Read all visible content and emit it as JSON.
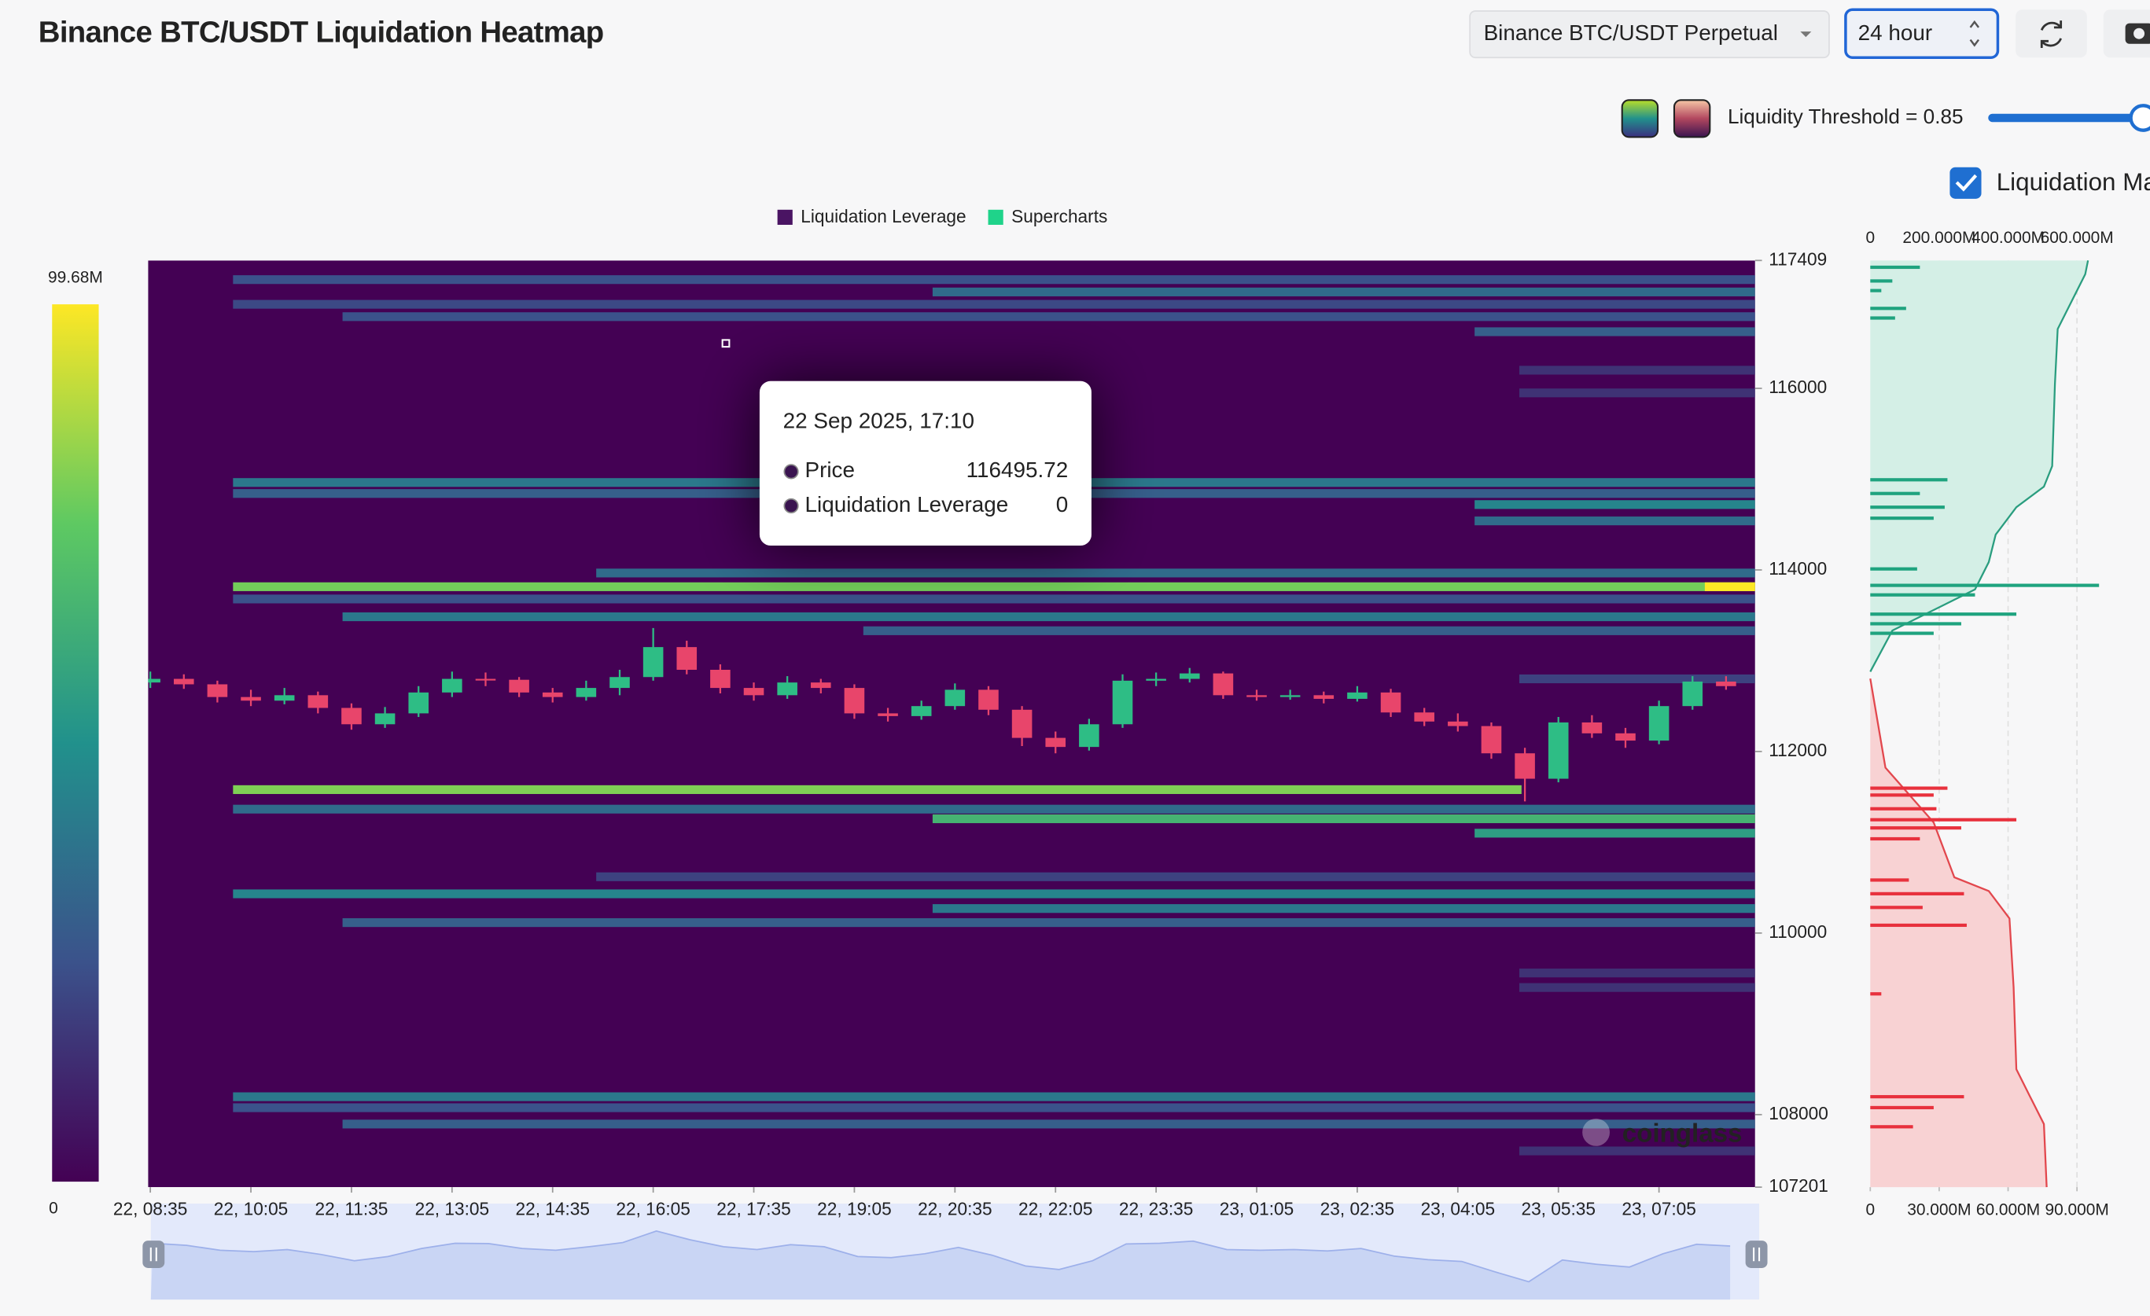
{
  "header": {
    "title": "Binance BTC/USDT Liquidation Heatmap",
    "exchange_select": "Binance BTC/USDT Perpetual",
    "interval_select": "24 hour",
    "threshold_label": "Liquidity Threshold = 0.85",
    "checkbox_label": "Liquidation Map"
  },
  "chart_data": [
    {
      "type": "heatmap",
      "xlim": [
        "2025-09-22 08:33",
        "2025-09-23 08:31"
      ],
      "xticks": [
        {
          "value": "2025-09-22 08:35",
          "label": "22, 08:35"
        },
        {
          "value": "2025-09-22 10:05",
          "label": "22, 10:05"
        },
        {
          "value": "2025-09-22 11:35",
          "label": "22, 11:35"
        },
        {
          "value": "2025-09-22 13:05",
          "label": "22, 13:05"
        },
        {
          "value": "2025-09-22 14:35",
          "label": "22, 14:35"
        },
        {
          "value": "2025-09-22 16:05",
          "label": "22, 16:05"
        },
        {
          "value": "2025-09-22 17:35",
          "label": "22, 17:35"
        },
        {
          "value": "2025-09-22 19:05",
          "label": "22, 19:05"
        },
        {
          "value": "2025-09-22 20:35",
          "label": "22, 20:35"
        },
        {
          "value": "2025-09-22 22:05",
          "label": "22, 22:05"
        },
        {
          "value": "2025-09-22 23:35",
          "label": "22, 23:35"
        },
        {
          "value": "2025-09-23 01:05",
          "label": "23, 01:05"
        },
        {
          "value": "2025-09-23 02:35",
          "label": "23, 02:35"
        },
        {
          "value": "2025-09-23 04:05",
          "label": "23, 04:05"
        },
        {
          "value": "2025-09-23 05:35",
          "label": "23, 05:35"
        },
        {
          "value": "2025-09-23 07:05",
          "label": "23, 07:05"
        }
      ],
      "ylim": [
        107201,
        117409
      ],
      "yticks": [
        107201,
        108000,
        110000,
        112000,
        114000,
        116000,
        117409
      ],
      "colormap": [
        "#440154",
        "#3b528b",
        "#21918c",
        "#5ec962",
        "#fde725"
      ],
      "colorbar": {
        "lim": [
          0,
          99.68
        ],
        "ticks": [
          0,
          {
            "value": 99.68,
            "label": "99.68M"
          }
        ]
      },
      "series": [
        {
          "name": "Liquidation Leverage",
          "color": "#4a1463",
          "segments": [
            {
              "price": 117198,
              "start": "2025-09-22 09:49",
              "value": 25
            },
            {
              "price": 117062,
              "start": "2025-09-22 20:15",
              "value": 35
            },
            {
              "price": 116926,
              "start": "2025-09-22 09:49",
              "value": 22
            },
            {
              "price": 116790,
              "start": "2025-09-22 11:27",
              "value": 25
            },
            {
              "price": 116624,
              "start": "2025-09-23 04:20",
              "value": 30
            },
            {
              "price": 116200,
              "start": "2025-09-23 05:00",
              "value": 15
            },
            {
              "price": 115950,
              "start": "2025-09-23 05:00",
              "value": 15
            },
            {
              "price": 114963,
              "start": "2025-09-22 09:49",
              "value": 40
            },
            {
              "price": 114842,
              "start": "2025-09-22 09:49",
              "value": 30
            },
            {
              "price": 114720,
              "start": "2025-09-23 04:20",
              "value": 45
            },
            {
              "price": 114540,
              "start": "2025-09-23 04:20",
              "value": 35
            },
            {
              "price": 113966,
              "start": "2025-09-22 15:14",
              "value": 35
            },
            {
              "price": 113815,
              "start": "2025-09-22 09:49",
              "value": 78
            },
            {
              "price": 113815,
              "start": "2025-09-23 07:46",
              "value": 99.68
            },
            {
              "price": 113680,
              "start": "2025-09-22 09:49",
              "value": 25
            },
            {
              "price": 113484,
              "start": "2025-09-22 11:27",
              "value": 40
            },
            {
              "price": 113330,
              "start": "2025-09-22 19:13",
              "value": 30
            },
            {
              "price": 112800,
              "start": "2025-09-23 05:00",
              "value": 20
            },
            {
              "price": 111580,
              "start": "2025-09-22 09:49",
              "end": "2025-09-23 05:02",
              "value": 80
            },
            {
              "price": 111365,
              "start": "2025-09-22 09:49",
              "value": 35
            },
            {
              "price": 111259,
              "start": "2025-09-22 20:15",
              "value": 65
            },
            {
              "price": 111100,
              "start": "2025-09-23 04:20",
              "value": 55
            },
            {
              "price": 110620,
              "start": "2025-09-22 15:14",
              "value": 20
            },
            {
              "price": 110432,
              "start": "2025-09-22 09:49",
              "value": 45
            },
            {
              "price": 110270,
              "start": "2025-09-22 20:15",
              "value": 40
            },
            {
              "price": 110115,
              "start": "2025-09-22 11:27",
              "value": 30
            },
            {
              "price": 109560,
              "start": "2025-09-23 05:00",
              "value": 15
            },
            {
              "price": 109400,
              "start": "2025-09-23 05:00",
              "value": 15
            },
            {
              "price": 108197,
              "start": "2025-09-22 09:49",
              "value": 40
            },
            {
              "price": 108076,
              "start": "2025-09-22 09:49",
              "value": 25
            },
            {
              "price": 107896,
              "start": "2025-09-22 11:27",
              "value": 30
            },
            {
              "price": 107600,
              "start": "2025-09-23 05:00",
              "value": 15
            }
          ]
        },
        {
          "name": "Supercharts",
          "color": "#1fd38a",
          "up_color": "#2ebd85",
          "down_color": "#e8456b",
          "x": [
            "2025-09-22 08:35",
            "2025-09-22 09:05",
            "2025-09-22 09:35",
            "2025-09-22 10:05",
            "2025-09-22 10:35",
            "2025-09-22 11:05",
            "2025-09-22 11:35",
            "2025-09-22 12:05",
            "2025-09-22 12:35",
            "2025-09-22 13:05",
            "2025-09-22 13:35",
            "2025-09-22 14:05",
            "2025-09-22 14:35",
            "2025-09-22 15:05",
            "2025-09-22 15:35",
            "2025-09-22 16:05",
            "2025-09-22 16:35",
            "2025-09-22 17:05",
            "2025-09-22 17:35",
            "2025-09-22 18:05",
            "2025-09-22 18:35",
            "2025-09-22 19:05",
            "2025-09-22 19:35",
            "2025-09-22 20:05",
            "2025-09-22 20:35",
            "2025-09-22 21:05",
            "2025-09-22 21:35",
            "2025-09-22 22:05",
            "2025-09-22 22:35",
            "2025-09-22 23:05",
            "2025-09-22 23:35",
            "2025-09-23 00:05",
            "2025-09-23 00:35",
            "2025-09-23 01:05",
            "2025-09-23 01:35",
            "2025-09-23 02:05",
            "2025-09-23 02:35",
            "2025-09-23 03:05",
            "2025-09-23 03:35",
            "2025-09-23 04:05",
            "2025-09-23 04:35",
            "2025-09-23 05:05",
            "2025-09-23 05:35",
            "2025-09-23 06:05",
            "2025-09-23 06:35",
            "2025-09-23 07:05",
            "2025-09-23 07:35",
            "2025-09-23 08:05"
          ],
          "ohlc": [
            [
              112760,
              112880,
              112700,
              112800
            ],
            [
              112800,
              112850,
              112690,
              112740
            ],
            [
              112740,
              112780,
              112540,
              112600
            ],
            [
              112600,
              112680,
              112500,
              112560
            ],
            [
              112560,
              112700,
              112520,
              112620
            ],
            [
              112620,
              112660,
              112420,
              112480
            ],
            [
              112480,
              112530,
              112240,
              112300
            ],
            [
              112300,
              112490,
              112260,
              112420
            ],
            [
              112420,
              112720,
              112380,
              112650
            ],
            [
              112650,
              112880,
              112600,
              112800
            ],
            [
              112800,
              112870,
              112720,
              112790
            ],
            [
              112790,
              112820,
              112600,
              112650
            ],
            [
              112650,
              112700,
              112540,
              112600
            ],
            [
              112600,
              112780,
              112560,
              112700
            ],
            [
              112700,
              112900,
              112620,
              112820
            ],
            [
              112820,
              113360,
              112780,
              113150
            ],
            [
              113150,
              113220,
              112850,
              112900
            ],
            [
              112900,
              112960,
              112640,
              112700
            ],
            [
              112700,
              112760,
              112560,
              112620
            ],
            [
              112620,
              112830,
              112580,
              112760
            ],
            [
              112760,
              112800,
              112640,
              112700
            ],
            [
              112700,
              112740,
              112360,
              112420
            ],
            [
              112420,
              112480,
              112330,
              112390
            ],
            [
              112390,
              112560,
              112350,
              112500
            ],
            [
              112500,
              112750,
              112460,
              112680
            ],
            [
              112680,
              112720,
              112400,
              112460
            ],
            [
              112460,
              112500,
              112060,
              112150
            ],
            [
              112150,
              112220,
              111980,
              112050
            ],
            [
              112050,
              112360,
              112010,
              112300
            ],
            [
              112300,
              112850,
              112260,
              112780
            ],
            [
              112780,
              112870,
              112720,
              112800
            ],
            [
              112800,
              112920,
              112760,
              112860
            ],
            [
              112860,
              112880,
              112580,
              112620
            ],
            [
              112620,
              112680,
              112560,
              112600
            ],
            [
              112600,
              112680,
              112570,
              112620
            ],
            [
              112620,
              112660,
              112530,
              112580
            ],
            [
              112580,
              112720,
              112550,
              112650
            ],
            [
              112650,
              112690,
              112380,
              112430
            ],
            [
              112430,
              112480,
              112280,
              112330
            ],
            [
              112330,
              112420,
              112220,
              112280
            ],
            [
              112280,
              112320,
              111920,
              111980
            ],
            [
              111980,
              112040,
              111450,
              111700
            ],
            [
              111700,
              112380,
              111660,
              112320
            ],
            [
              112320,
              112400,
              112150,
              112200
            ],
            [
              112200,
              112260,
              112040,
              112120
            ],
            [
              112120,
              112560,
              112080,
              112500
            ],
            [
              112500,
              112830,
              112460,
              112770
            ],
            [
              112770,
              112830,
              112680,
              112720
            ]
          ]
        }
      ],
      "tooltip": {
        "title": "22 Sep 2025, 17:10",
        "time": "2025-09-22 17:10",
        "rows": [
          {
            "name": "Price",
            "value": 116495.72
          },
          {
            "name": "Liquidation Leverage",
            "value": 0
          }
        ]
      },
      "watermark": "coinglass"
    },
    {
      "type": "profile",
      "ylim": [
        107201,
        117409
      ],
      "xlim": [
        0,
        120
      ],
      "xticks": [
        0,
        {
          "value": 30,
          "label": "30.000M"
        },
        {
          "value": 60,
          "label": "60.000M"
        },
        {
          "value": 90,
          "label": "90.000M"
        }
      ],
      "x2lim": [
        0,
        800
      ],
      "x2ticks": [
        0,
        {
          "value": 200,
          "label": "200.000M"
        },
        {
          "value": 400,
          "label": "400.000M"
        },
        {
          "value": 600,
          "label": "600.000M"
        }
      ],
      "series": [
        {
          "type": "area",
          "axis": "x2",
          "color": "#2a9d7f",
          "fill": "#d4efe6",
          "price": [
            117409,
            117258,
            116654,
            116050,
            115144,
            114917,
            114691,
            114389,
            114087,
            113785,
            113634,
            113332,
            112879
          ],
          "values": [
            632,
            624,
            544,
            536,
            528,
            504,
            424,
            364,
            344,
            304,
            224,
            64,
            0
          ]
        },
        {
          "type": "area",
          "axis": "x2",
          "color": "#e2474d",
          "fill": "#f8d2d3",
          "price": [
            112803,
            111822,
            111218,
            110614,
            110463,
            110161,
            109406,
            108500,
            108197,
            107896,
            107201
          ],
          "values": [
            0,
            44,
            184,
            244,
            344,
            404,
            416,
            424,
            464,
            504,
            512
          ]
        },
        {
          "type": "bar",
          "color": "#1fa37f",
          "price": [
            117334,
            117183,
            117077,
            116881,
            116775,
            114993,
            114842,
            114691,
            114570,
            114011,
            113830,
            113725,
            113513,
            113407,
            113302
          ],
          "values": [
            21.6,
            9.6,
            4.8,
            15.6,
            10.8,
            33.6,
            21.6,
            32.4,
            27.6,
            20.4,
            99.6,
            45.6,
            63.6,
            39.6,
            27.6
          ]
        },
        {
          "type": "bar",
          "color": "#e8313d",
          "price": [
            111596,
            111520,
            111369,
            111248,
            111158,
            111038,
            110584,
            110433,
            110282,
            110086,
            109330,
            108197,
            108077,
            107866
          ],
          "values": [
            33.6,
            27.6,
            28.8,
            63.6,
            39.6,
            21.6,
            16.8,
            40.8,
            22.8,
            42,
            4.8,
            40.8,
            27.6,
            18.6
          ]
        }
      ]
    }
  ]
}
